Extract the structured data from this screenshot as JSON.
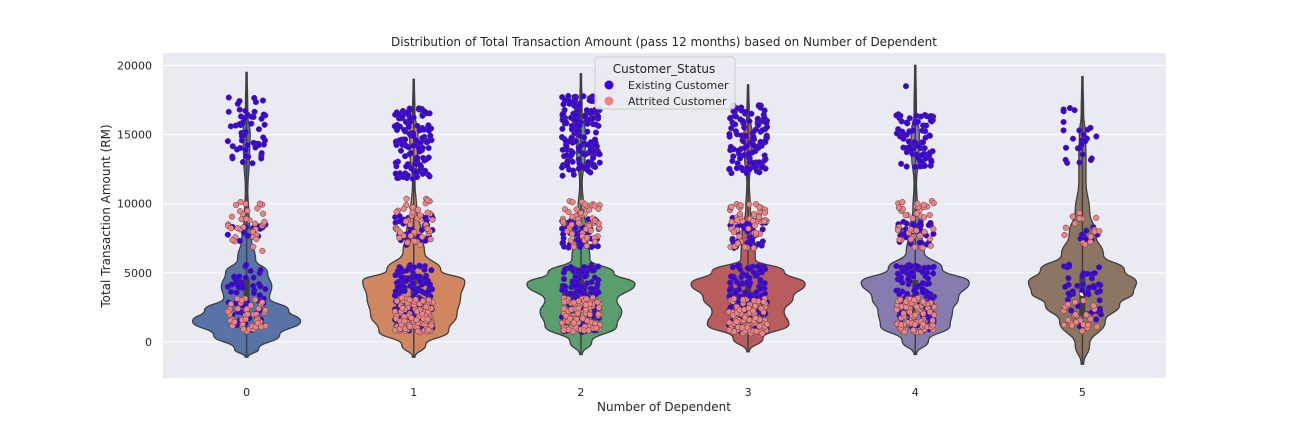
{
  "chart_data": {
    "type": "violin",
    "title": "Distribution of Total Transaction Amount (pass 12 months) based on Number of Dependent",
    "xlabel": "Number of Dependent",
    "ylabel": "Total Transaction Amount (RM)",
    "categories": [
      "0",
      "1",
      "2",
      "3",
      "4",
      "5"
    ],
    "yticks": [
      0,
      5000,
      10000,
      15000,
      20000
    ],
    "ylim": [
      -2600,
      20900
    ],
    "grid": true,
    "legend": {
      "title": "Customer_Status",
      "placement": "top-center",
      "entries": [
        {
          "label": "Existing Customer",
          "color": "#3d00e6"
        },
        {
          "label": "Attrited Customer",
          "color": "#f08282"
        }
      ]
    },
    "violin_colors": [
      "#5874a7",
      "#d0875f",
      "#5b9e6d",
      "#b85c5e",
      "#877bb0",
      "#8c7562"
    ],
    "violins": [
      {
        "category": "0",
        "min": -1100,
        "max": 19500,
        "median": 2900,
        "q1": 1500,
        "q3": 4600,
        "width": [
          [
            -1100,
            0.02
          ],
          [
            -500,
            0.2
          ],
          [
            500,
            0.55
          ],
          [
            1500,
            0.9
          ],
          [
            2300,
            0.7
          ],
          [
            3200,
            0.38
          ],
          [
            4000,
            0.42
          ],
          [
            5000,
            0.35
          ],
          [
            6000,
            0.15
          ],
          [
            7500,
            0.08
          ],
          [
            9000,
            0.04
          ],
          [
            11000,
            0.02
          ],
          [
            13500,
            0.05
          ],
          [
            15000,
            0.06
          ],
          [
            16500,
            0.02
          ],
          [
            19500,
            0.01
          ]
        ]
      },
      {
        "category": "1",
        "min": -1100,
        "max": 19000,
        "median": 3000,
        "q1": 1800,
        "q3": 4700,
        "width": [
          [
            -1100,
            0.02
          ],
          [
            -200,
            0.2
          ],
          [
            800,
            0.58
          ],
          [
            2000,
            0.72
          ],
          [
            3200,
            0.78
          ],
          [
            4400,
            0.85
          ],
          [
            5200,
            0.45
          ],
          [
            6500,
            0.18
          ],
          [
            8000,
            0.12
          ],
          [
            9500,
            0.05
          ],
          [
            11500,
            0.02
          ],
          [
            13500,
            0.06
          ],
          [
            15000,
            0.07
          ],
          [
            16500,
            0.02
          ],
          [
            19000,
            0.01
          ]
        ]
      },
      {
        "category": "2",
        "min": -900,
        "max": 19400,
        "median": 3000,
        "q1": 2000,
        "q3": 4600,
        "width": [
          [
            -900,
            0.02
          ],
          [
            0,
            0.18
          ],
          [
            1200,
            0.6
          ],
          [
            2200,
            0.68
          ],
          [
            3000,
            0.6
          ],
          [
            4200,
            0.9
          ],
          [
            5000,
            0.55
          ],
          [
            6000,
            0.15
          ],
          [
            8000,
            0.1
          ],
          [
            9500,
            0.05
          ],
          [
            11500,
            0.02
          ],
          [
            13500,
            0.07
          ],
          [
            15000,
            0.08
          ],
          [
            16500,
            0.02
          ],
          [
            19400,
            0.01
          ]
        ]
      },
      {
        "category": "3",
        "min": -700,
        "max": 18600,
        "median": 3100,
        "q1": 2000,
        "q3": 4500,
        "width": [
          [
            -700,
            0.02
          ],
          [
            300,
            0.25
          ],
          [
            1300,
            0.68
          ],
          [
            2200,
            0.6
          ],
          [
            3200,
            0.75
          ],
          [
            4200,
            0.95
          ],
          [
            5100,
            0.6
          ],
          [
            6000,
            0.12
          ],
          [
            8000,
            0.1
          ],
          [
            9500,
            0.04
          ],
          [
            11500,
            0.02
          ],
          [
            13500,
            0.06
          ],
          [
            15000,
            0.07
          ],
          [
            16500,
            0.02
          ],
          [
            18600,
            0.01
          ]
        ]
      },
      {
        "category": "4",
        "min": -900,
        "max": 20000,
        "median": 3000,
        "q1": 1900,
        "q3": 4500,
        "width": [
          [
            -900,
            0.02
          ],
          [
            100,
            0.22
          ],
          [
            1200,
            0.58
          ],
          [
            2200,
            0.62
          ],
          [
            3200,
            0.72
          ],
          [
            4300,
            0.9
          ],
          [
            5300,
            0.45
          ],
          [
            6500,
            0.15
          ],
          [
            8000,
            0.1
          ],
          [
            9500,
            0.04
          ],
          [
            11500,
            0.02
          ],
          [
            13500,
            0.06
          ],
          [
            15000,
            0.07
          ],
          [
            16500,
            0.02
          ],
          [
            20000,
            0.01
          ]
        ]
      },
      {
        "category": "5",
        "min": -1600,
        "max": 19200,
        "median": 3500,
        "q1": 1900,
        "q3": 4900,
        "width": [
          [
            -1600,
            0.02
          ],
          [
            -200,
            0.12
          ],
          [
            1500,
            0.38
          ],
          [
            2700,
            0.62
          ],
          [
            3600,
            0.85
          ],
          [
            4300,
            0.9
          ],
          [
            5200,
            0.7
          ],
          [
            6300,
            0.35
          ],
          [
            7800,
            0.22
          ],
          [
            9500,
            0.12
          ],
          [
            11500,
            0.06
          ],
          [
            13500,
            0.06
          ],
          [
            15000,
            0.05
          ],
          [
            16500,
            0.02
          ],
          [
            19200,
            0.01
          ]
        ]
      }
    ],
    "points": {
      "existing_clusters": [
        {
          "category": "0",
          "low": [
            [
              800,
              5600,
              55
            ],
            [
              7300,
              8800,
              12
            ]
          ],
          "high": [
            [
              12800,
              17800,
              55
            ]
          ]
        },
        {
          "category": "1",
          "low": [
            [
              800,
              5600,
              140
            ],
            [
              7000,
              9200,
              40
            ]
          ],
          "high": [
            [
              11800,
              17000,
              120
            ]
          ]
        },
        {
          "category": "2",
          "low": [
            [
              700,
              5600,
              160
            ],
            [
              6800,
              9000,
              60
            ]
          ],
          "high": [
            [
              12000,
              17800,
              170
            ]
          ]
        },
        {
          "category": "3",
          "low": [
            [
              700,
              5600,
              150
            ],
            [
              6800,
              9000,
              50
            ]
          ],
          "high": [
            [
              12200,
              17200,
              120
            ]
          ]
        },
        {
          "category": "4",
          "low": [
            [
              800,
              5600,
              110
            ],
            [
              7000,
              8800,
              35
            ]
          ],
          "high": [
            [
              12600,
              16500,
              80
            ],
            [
              18500,
              18500,
              1
            ]
          ]
        },
        {
          "category": "5",
          "low": [
            [
              1100,
              5600,
              45
            ],
            [
              7200,
              8600,
              8
            ]
          ],
          "high": [
            [
              12900,
              17000,
              25
            ]
          ]
        }
      ],
      "attrited_clusters": [
        {
          "category": "0",
          "low": [
            [
              700,
              3200,
              45
            ],
            [
              6500,
              10200,
              35
            ]
          ]
        },
        {
          "category": "1",
          "low": [
            [
              700,
              3200,
              110
            ],
            [
              7000,
              10500,
              45
            ]
          ]
        },
        {
          "category": "2",
          "low": [
            [
              700,
              3200,
              110
            ],
            [
              6800,
              10200,
              55
            ]
          ]
        },
        {
          "category": "3",
          "low": [
            [
              600,
              3200,
              110
            ],
            [
              6800,
              10000,
              55
            ]
          ]
        },
        {
          "category": "4",
          "low": [
            [
              700,
              3200,
              85
            ],
            [
              6800,
              10200,
              45
            ]
          ]
        },
        {
          "category": "5",
          "low": [
            [
              800,
              3000,
              25
            ],
            [
              6800,
              9800,
              15
            ]
          ]
        }
      ]
    }
  }
}
